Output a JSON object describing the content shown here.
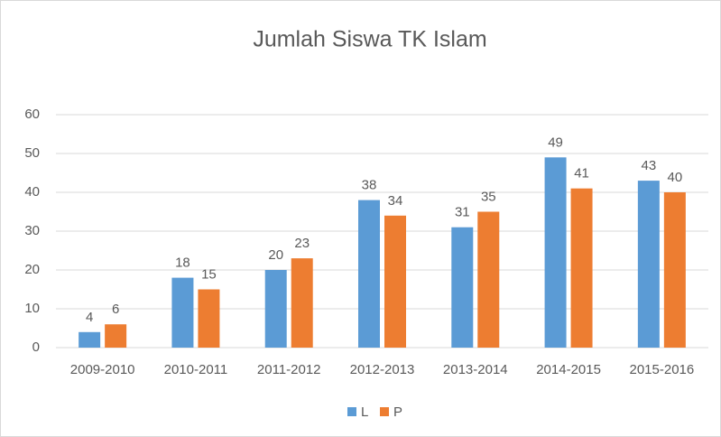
{
  "chart_data": {
    "type": "bar",
    "title": "Jumlah Siswa TK Islam",
    "categories": [
      "2009-2010",
      "2010-2011",
      "2011-2012",
      "2012-2013",
      "2013-2014",
      "2014-2015",
      "2015-2016"
    ],
    "series": [
      {
        "name": "L",
        "color": "#5b9bd5",
        "values": [
          4,
          18,
          20,
          38,
          31,
          49,
          43
        ]
      },
      {
        "name": "P",
        "color": "#ed7d31",
        "values": [
          6,
          15,
          23,
          34,
          35,
          41,
          40
        ]
      }
    ],
    "ylim": [
      0,
      60
    ],
    "yticks": [
      0,
      10,
      20,
      30,
      40,
      50,
      60
    ],
    "grid": true,
    "legend": "bottom"
  }
}
